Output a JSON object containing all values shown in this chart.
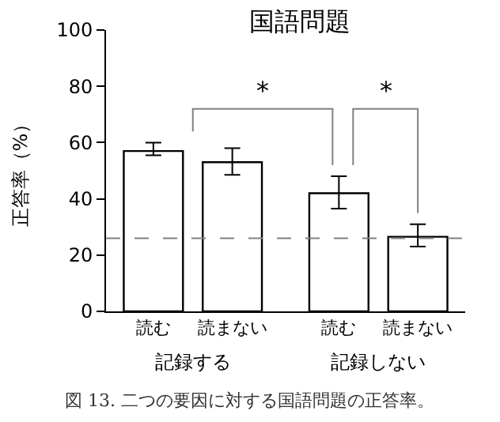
{
  "chart_data": {
    "type": "bar",
    "title": "国語問題",
    "ylabel": "正答率（%）",
    "categories": [
      "読む",
      "読まない",
      "読む",
      "読まない"
    ],
    "values": [
      57,
      53,
      42,
      26.5
    ],
    "errors": [
      [
        55.5,
        60
      ],
      [
        48.5,
        58
      ],
      [
        36.5,
        48
      ],
      [
        23,
        31
      ]
    ],
    "color": "#ffffff",
    "ylim": [
      0,
      100
    ],
    "yticks": [
      0,
      20,
      40,
      60,
      80,
      100
    ],
    "ref_lines": [
      {
        "axis": "y",
        "value": 26,
        "label": null,
        "color": "#808080",
        "line_style": "dashed"
      }
    ],
    "annotations": [
      "*",
      "*",
      "記録する",
      "記録しない",
      "図 13. 二つの要因に対する国語問題の正答率。"
    ]
  }
}
